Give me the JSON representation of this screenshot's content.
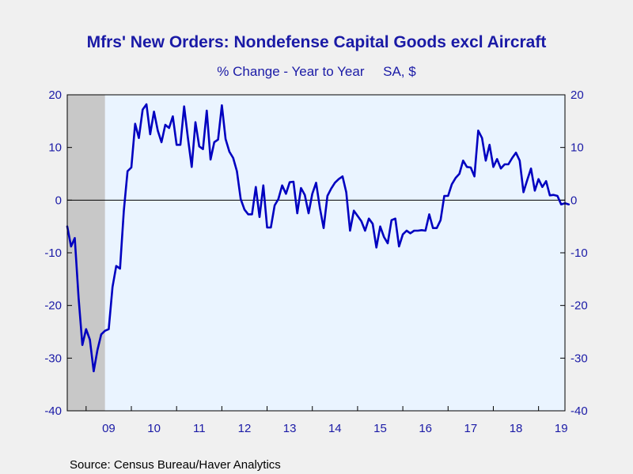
{
  "chart_data": {
    "type": "line",
    "title": "Mfrs' New Orders: Nondefense Capital Goods excl Aircraft",
    "subtitle": "% Change - Year to Year     SA, $",
    "source": "Source:  Census Bureau/Haver Analytics",
    "x_start": "2008-08",
    "x_end": "2019-08",
    "ylim": [
      -40,
      20
    ],
    "y_ticks": [
      20,
      10,
      0,
      -10,
      -20,
      -30,
      -40
    ],
    "y_tick_labels": [
      "20",
      "10",
      "0",
      "-10",
      "-20",
      "-30",
      "-40"
    ],
    "x_tick_labels": [
      {
        "label": "09",
        "year": 2009
      },
      {
        "label": "10",
        "year": 2010
      },
      {
        "label": "11",
        "year": 2011
      },
      {
        "label": "12",
        "year": 2012
      },
      {
        "label": "13",
        "year": 2013
      },
      {
        "label": "14",
        "year": 2014
      },
      {
        "label": "15",
        "year": 2015
      },
      {
        "label": "16",
        "year": 2016
      },
      {
        "label": "17",
        "year": 2017
      },
      {
        "label": "18",
        "year": 2018
      },
      {
        "label": "19",
        "year": 2019
      }
    ],
    "recession": {
      "start": "2008-08",
      "end": "2009-06"
    },
    "colors": {
      "line": "#0000c0",
      "plot_bg": "#eaf4ff",
      "recession_shade": "#c8c8c8",
      "text": "#1a1aa6",
      "zero_line": "#000000"
    },
    "series": [
      {
        "start": "2008-08",
        "values": [
          -5.0,
          -8.8,
          -7.2,
          -18.5,
          -27.5,
          -24.5,
          -26.5,
          -32.5,
          -28.5,
          -25.5,
          -24.8,
          -24.5,
          -16.5,
          -12.5,
          -13.0,
          -2.0,
          5.5,
          6.2,
          14.5,
          11.8,
          17.2,
          18.2,
          12.5,
          16.8,
          13.2,
          11.0,
          14.3,
          13.7,
          15.9,
          10.5,
          10.5,
          17.8,
          11.8,
          6.3,
          14.8,
          10.2,
          9.7,
          17.0,
          7.7,
          11.0,
          11.5,
          18.0,
          11.6,
          9.2,
          8.0,
          5.5,
          0.2,
          -1.8,
          -2.7,
          -2.7,
          2.5,
          -3.2,
          2.8,
          -5.2,
          -5.2,
          -1.0,
          0.2,
          2.8,
          1.2,
          3.4,
          3.5,
          -2.5,
          2.3,
          1.0,
          -2.5,
          1.2,
          3.3,
          -1.5,
          -5.3,
          0.8,
          2.2,
          3.3,
          4.0,
          4.5,
          1.5,
          -5.8,
          -2.0,
          -3.0,
          -4.0,
          -5.8,
          -3.5,
          -4.5,
          -9.0,
          -5.0,
          -7.0,
          -8.2,
          -3.8,
          -3.5,
          -8.8,
          -6.5,
          -5.8,
          -6.3,
          -5.8,
          -5.8,
          -5.7,
          -5.8,
          -2.7,
          -5.3,
          -5.3,
          -3.8,
          0.8,
          0.8,
          3.0,
          4.2,
          5.0,
          7.5,
          6.3,
          6.2,
          4.5,
          13.2,
          11.8,
          7.5,
          10.5,
          6.3,
          7.8,
          6.0,
          6.8,
          6.8,
          8.0,
          9.0,
          7.5,
          1.5,
          3.8,
          6.0,
          1.8,
          4.0,
          2.5,
          3.6,
          0.9,
          1.0,
          0.8,
          -0.8,
          -0.6,
          -0.8
        ]
      }
    ]
  }
}
